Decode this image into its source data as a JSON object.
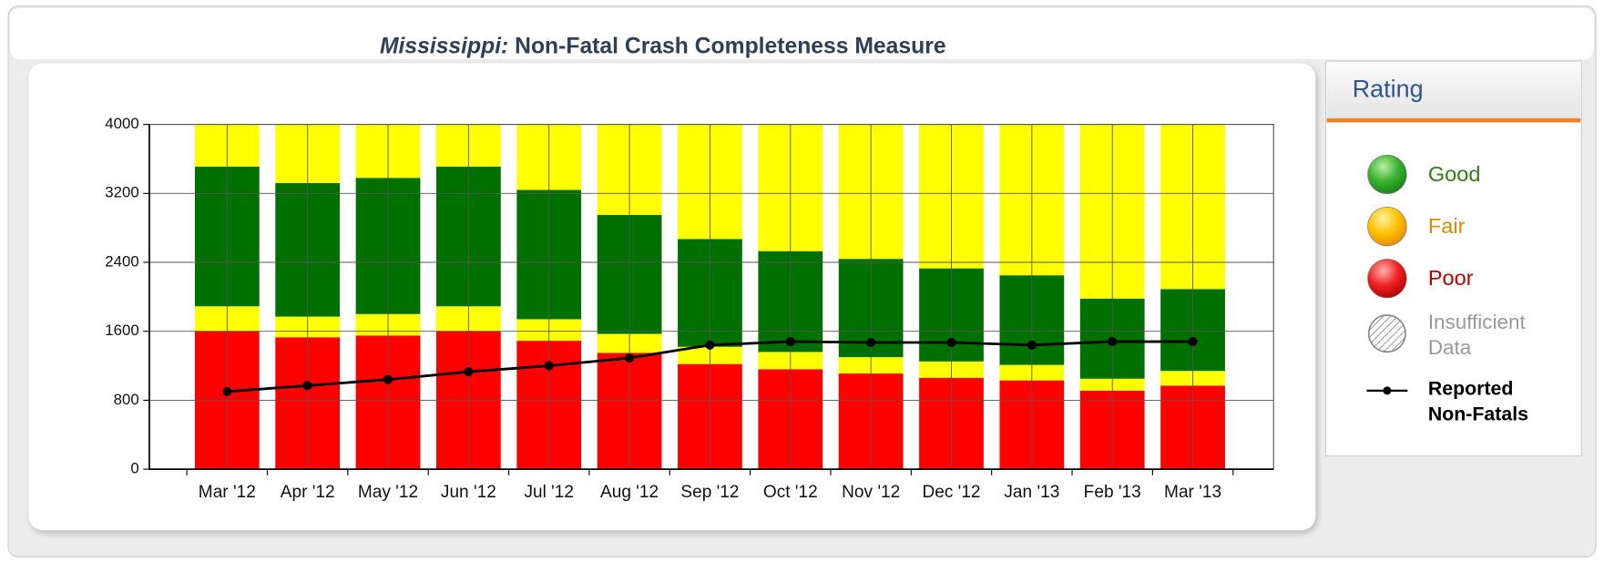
{
  "chart_data": {
    "type": "stacked_bar_line",
    "title_prefix": "Mississippi:",
    "title": "Non-Fatal Crash Completeness Measure",
    "legend_title": "Rating",
    "categories": [
      "Mar '12",
      "Apr '12",
      "May '12",
      "Jun '12",
      "Jul '12",
      "Aug '12",
      "Sep '12",
      "Oct '12",
      "Nov '12",
      "Dec '12",
      "Jan '13",
      "Feb '13",
      "Mar '13"
    ],
    "series": [
      {
        "name": "Poor",
        "color": "#ff0000",
        "values": [
          1600,
          1530,
          1550,
          1600,
          1490,
          1350,
          1220,
          1160,
          1110,
          1060,
          1030,
          910,
          970
        ]
      },
      {
        "name": "Fair",
        "color": "#ffff00",
        "values": [
          290,
          240,
          250,
          290,
          250,
          220,
          200,
          200,
          190,
          190,
          180,
          140,
          170
        ]
      },
      {
        "name": "Good",
        "color": "#007000",
        "values": [
          1620,
          1550,
          1580,
          1620,
          1500,
          1380,
          1250,
          1170,
          1140,
          1080,
          1040,
          930,
          950
        ]
      },
      {
        "color": "#ffff00",
        "values": [
          490,
          680,
          620,
          490,
          760,
          1050,
          1330,
          1470,
          1560,
          1670,
          1750,
          2020,
          1910
        ]
      }
    ],
    "line_series": {
      "name": "Reported Non-Fatals",
      "color": "#000000",
      "values": [
        900,
        970,
        1040,
        1130,
        1200,
        1290,
        1440,
        1480,
        1470,
        1470,
        1440,
        1480,
        1480
      ]
    },
    "insufficient_label": "Insufficient Data",
    "ylim": [
      0,
      4000
    ],
    "yticks": [
      0,
      800,
      1600,
      2400,
      3200,
      4000
    ],
    "grid": true
  }
}
